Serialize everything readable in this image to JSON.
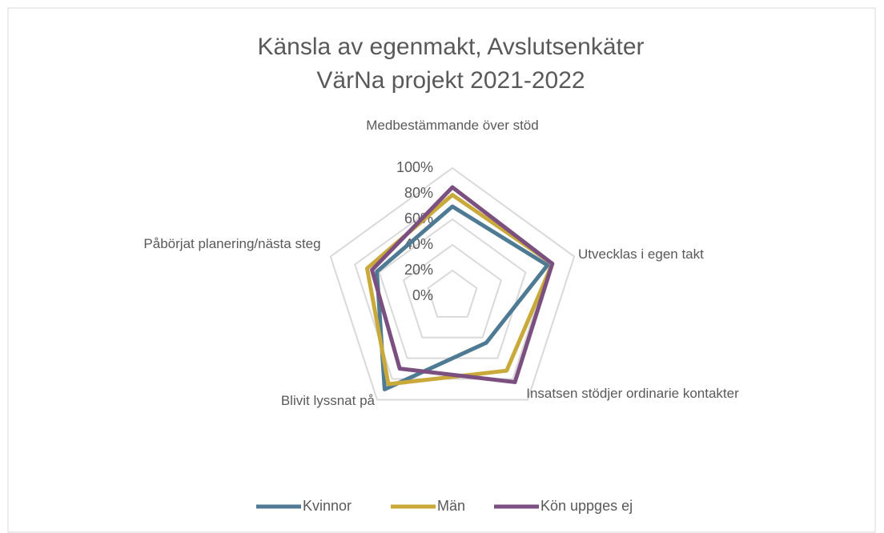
{
  "chart_data": {
    "type": "radar",
    "title": [
      "Känsla av egenmakt, Avslutsenkäter",
      "VärNa projekt 2021-2022"
    ],
    "categories": [
      "Medbestämmande över stöd",
      "Utvecklas i egen takt",
      "Insatsen stödjer ordinarie kontakter",
      "Blivit lyssnat på",
      "Påbörjat planering/nästa steg"
    ],
    "ylim": [
      0,
      100
    ],
    "yticks": [
      {
        "value": 0,
        "label": "0%"
      },
      {
        "value": 20,
        "label": "20%"
      },
      {
        "value": 40,
        "label": "40%"
      },
      {
        "value": 60,
        "label": "60%"
      },
      {
        "value": 80,
        "label": "80%"
      },
      {
        "value": 100,
        "label": "100%"
      }
    ],
    "grid": true,
    "legend": "bottom",
    "series": [
      {
        "name": "Kvinnor",
        "color": "#4e7a93",
        "values": [
          70,
          78,
          45,
          90,
          62
        ]
      },
      {
        "name": "Män",
        "color": "#c9a93a",
        "values": [
          79,
          82,
          72,
          85,
          70
        ]
      },
      {
        "name": "Kön uppges ej",
        "color": "#7b4f7f",
        "values": [
          85,
          82,
          83,
          70,
          66
        ]
      }
    ]
  }
}
